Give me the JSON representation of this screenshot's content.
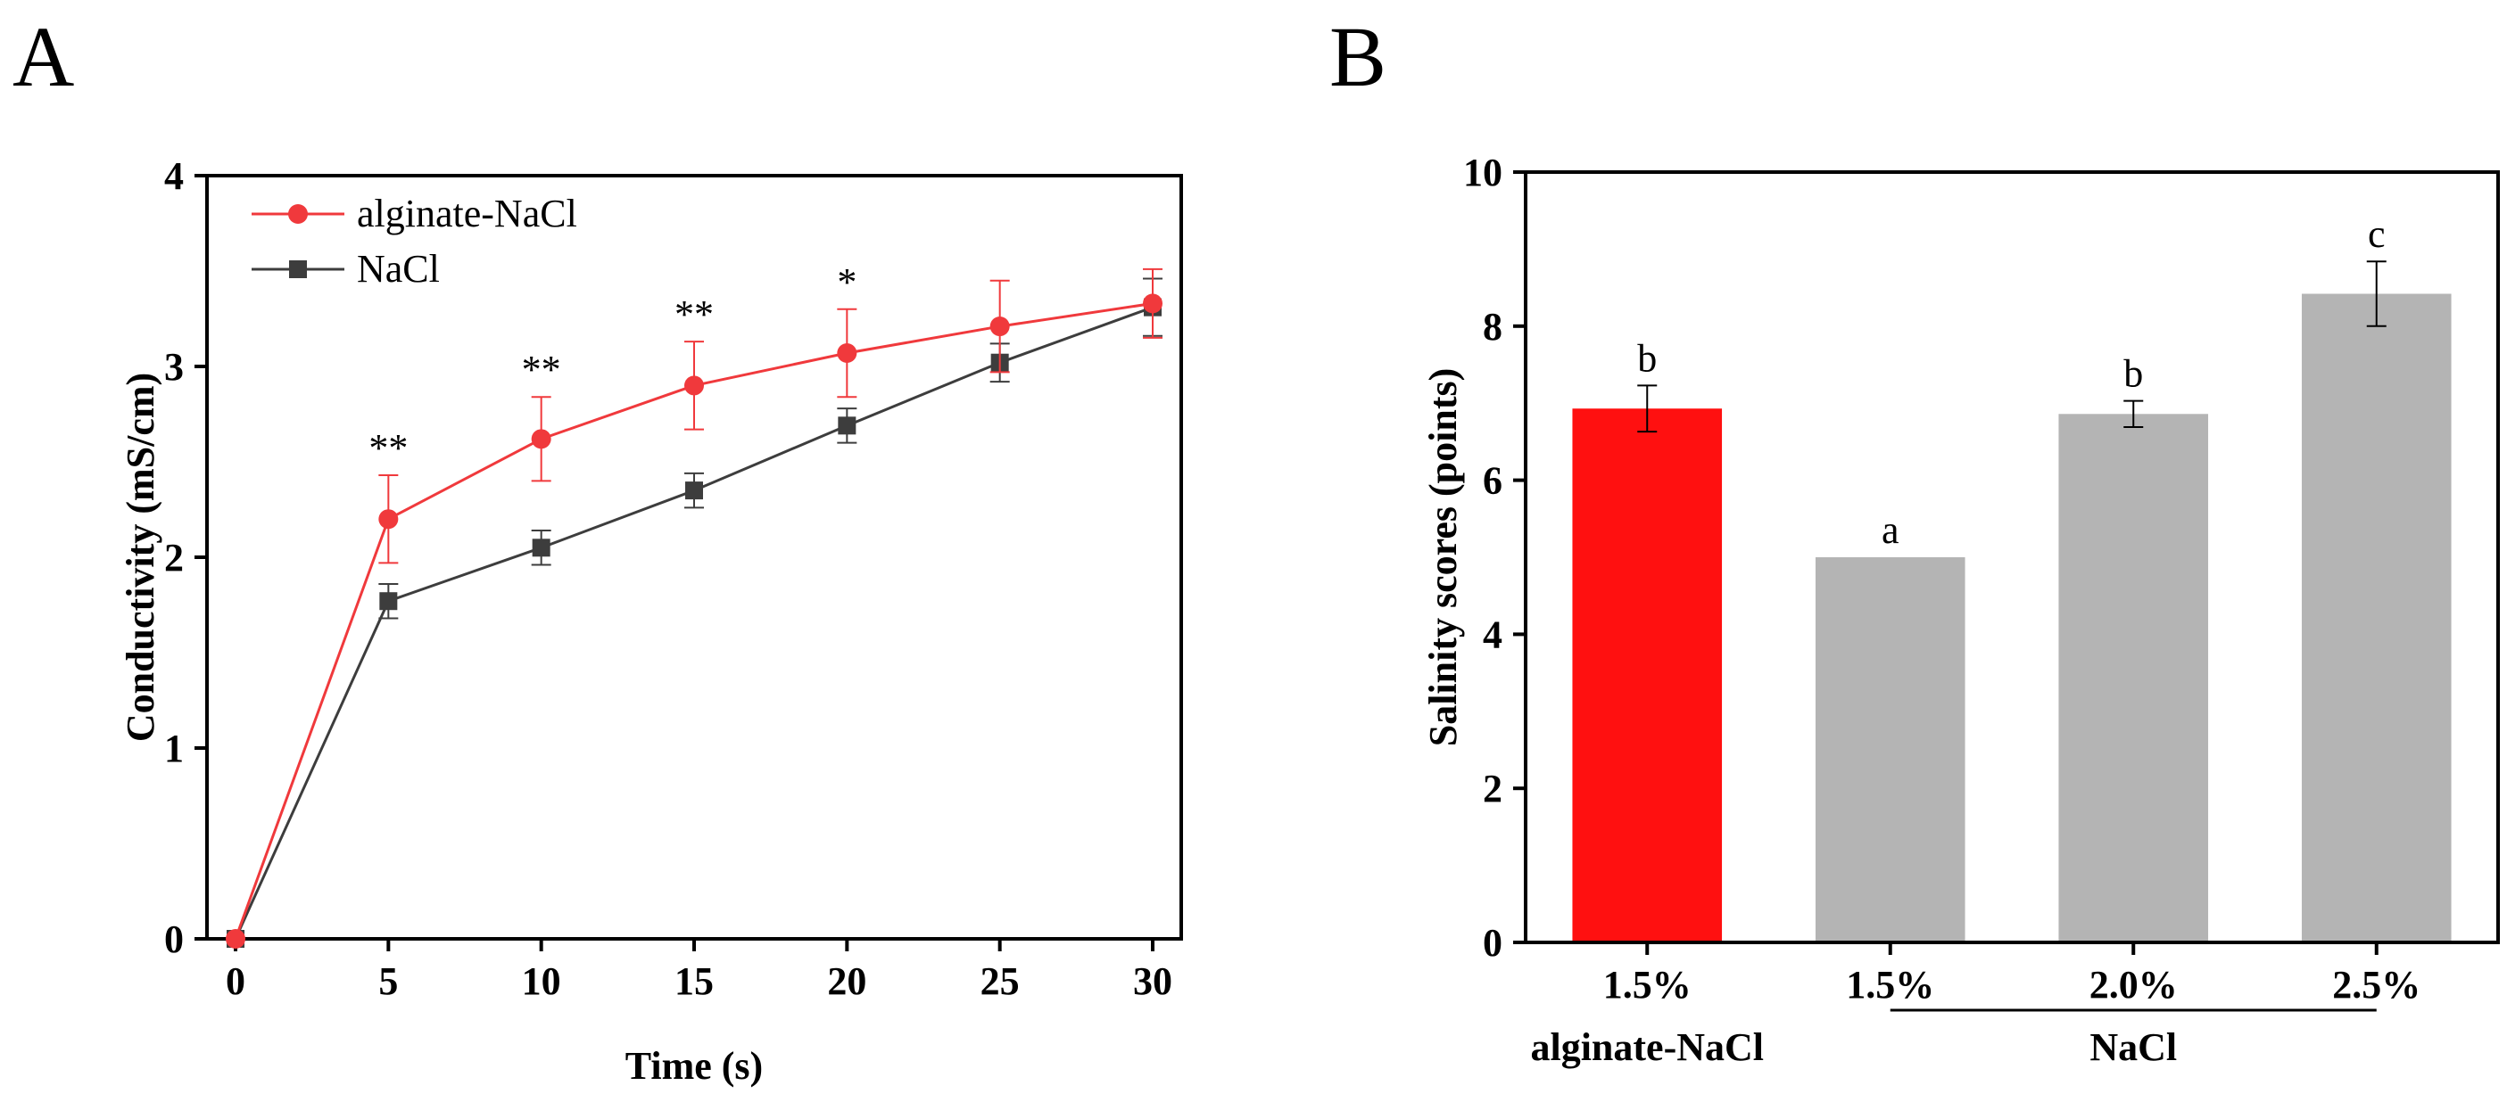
{
  "panels": {
    "a_letter": "A",
    "b_letter": "B"
  },
  "colors": {
    "alginate": "#f0393c",
    "nacl": "#3d3d3d",
    "bar_red": "#ff1010",
    "bar_gray": "#b4b4b4"
  },
  "chart_data": [
    {
      "type": "line",
      "panel": "A",
      "title": "",
      "xlabel": "Time (s)",
      "ylabel": "Conductivity (mS/cm)",
      "xlim": [
        0,
        30
      ],
      "ylim": [
        0,
        4
      ],
      "xticks": [
        0,
        5,
        10,
        15,
        20,
        25,
        30
      ],
      "yticks": [
        0,
        1,
        2,
        3,
        4
      ],
      "x": [
        0,
        5,
        10,
        15,
        20,
        25,
        30
      ],
      "series": [
        {
          "name": "alginate-NaCl",
          "marker": "circle",
          "values": [
            0,
            2.2,
            2.62,
            2.9,
            3.07,
            3.21,
            3.33
          ],
          "errors": [
            0,
            0.23,
            0.22,
            0.23,
            0.23,
            0.24,
            0.18
          ]
        },
        {
          "name": "NaCl",
          "marker": "square",
          "values": [
            0,
            1.77,
            2.05,
            2.35,
            2.69,
            3.02,
            3.31
          ],
          "errors": [
            0,
            0.09,
            0.09,
            0.09,
            0.09,
            0.1,
            0.15
          ]
        }
      ],
      "annotations": [
        {
          "x": 5,
          "text": "**"
        },
        {
          "x": 10,
          "text": "**"
        },
        {
          "x": 15,
          "text": "**"
        },
        {
          "x": 20,
          "text": "*"
        }
      ],
      "legend_position": "top-left",
      "grid": false
    },
    {
      "type": "bar",
      "panel": "B",
      "title": "",
      "xlabel": "",
      "ylabel": "Salinity scores (points)",
      "ylim": [
        0,
        10
      ],
      "yticks": [
        0,
        2,
        4,
        6,
        8,
        10
      ],
      "categories": [
        "1.5%",
        "1.5%",
        "2.0%",
        "2.5%"
      ],
      "values": [
        6.93,
        5.0,
        6.86,
        8.42
      ],
      "errors": [
        0.3,
        0.0,
        0.17,
        0.42
      ],
      "letters": [
        "b",
        "a",
        "b",
        "c"
      ],
      "group_labels": [
        {
          "text": "alginate-NaCl",
          "categories": [
            0
          ]
        },
        {
          "text": "NaCl",
          "categories": [
            1,
            2,
            3
          ]
        }
      ],
      "grid": false
    }
  ]
}
